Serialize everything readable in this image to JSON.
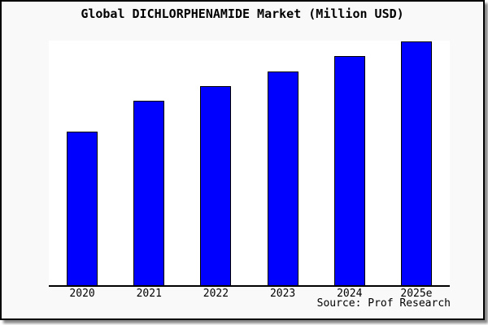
{
  "window": {
    "card_background": "#f9f9f9",
    "card_border_color": "#000000",
    "shadow_color": "#888888"
  },
  "chart_data": {
    "type": "bar",
    "title": "Global DICHLORPHENAMIDE Market (Million USD)",
    "categories": [
      "2020",
      "2021",
      "2022",
      "2023",
      "2024",
      "2025e"
    ],
    "values": [
      63.0,
      75.7,
      81.7,
      87.7,
      94.0,
      100.0
    ],
    "value_scale_note": "no y-axis ticks or value labels shown; values are bar heights as percent of the tallest bar (2025e)",
    "xlabel": "",
    "ylabel": "",
    "legend": "none",
    "grid": false,
    "bar_color": "#0000ff",
    "bar_border_color": "#000000",
    "plot_background": "#ffffff",
    "axis_color": "#000000",
    "source": "Source: Prof Research"
  }
}
